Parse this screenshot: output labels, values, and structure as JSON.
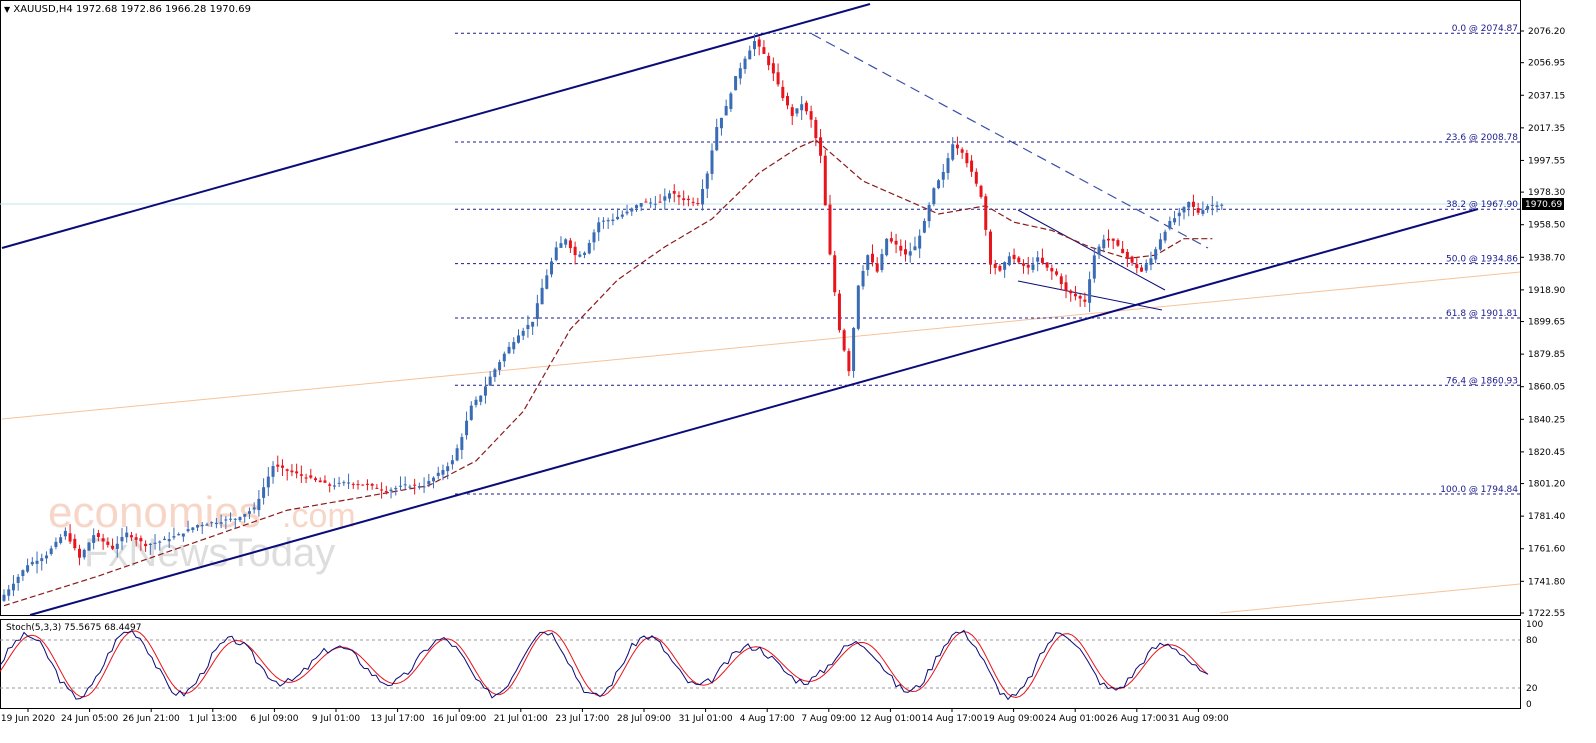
{
  "header": {
    "symbol": "XAUUSD,H4",
    "ohlc": "1972.68 1972.86 1966.28 1970.69"
  },
  "watermark": {
    "line1": "economies",
    "line1b": ".com",
    "line2": "FxNewsToday"
  },
  "colors": {
    "bull": "#3a6bb5",
    "bear": "#e8141c",
    "channel": "#0b0b7a",
    "fib": "#1a1a8c",
    "ma": "#8b1a1a",
    "stoch_main": "#0b0b7a",
    "stoch_signal": "#e8141c",
    "price_tag_bg": "#000000",
    "hline": "#bfe6ef"
  },
  "chart_data": {
    "type": "candlestick",
    "price_axis": {
      "min": 1722.55,
      "max": 2086.0,
      "ticks": [
        "2076.20",
        "2056.95",
        "2037.15",
        "2017.35",
        "1997.55",
        "1978.30",
        "1958.50",
        "1938.70",
        "1918.90",
        "1899.65",
        "1879.85",
        "1860.05",
        "1840.25",
        "1820.45",
        "1801.20",
        "1781.40",
        "1761.60",
        "1741.80",
        "1722.55"
      ]
    },
    "current_price": "1970.69",
    "time_axis": [
      "19 Jun 2020",
      "24 Jun 05:00",
      "26 Jun 21:00",
      "1 Jul 13:00",
      "6 Jul 09:00",
      "9 Jul 01:00",
      "13 Jul 17:00",
      "16 Jul 09:00",
      "21 Jul 01:00",
      "23 Jul 17:00",
      "28 Jul 09:00",
      "31 Jul 01:00",
      "4 Aug 17:00",
      "7 Aug 09:00",
      "12 Aug 01:00",
      "14 Aug 17:00",
      "19 Aug 09:00",
      "24 Aug 01:00",
      "26 Aug 17:00",
      "31 Aug 09:00"
    ],
    "fibonacci": [
      {
        "label": "0.0 @ 2074.87",
        "price": 2074.87
      },
      {
        "label": "23.6 @ 2008.78",
        "price": 2008.78
      },
      {
        "label": "38.2 @ 1967.90",
        "price": 1967.9
      },
      {
        "label": "50.0 @ 1934.86",
        "price": 1934.86
      },
      {
        "label": "61.8 @ 1901.81",
        "price": 1901.81
      },
      {
        "label": "76.4 @ 1860.93",
        "price": 1860.93
      },
      {
        "label": "100.0 @ 1794.84",
        "price": 1794.84
      }
    ],
    "path": [
      [
        0,
        1730
      ],
      [
        6,
        1752
      ],
      [
        10,
        1758
      ],
      [
        14,
        1772
      ],
      [
        17,
        1756
      ],
      [
        20,
        1770
      ],
      [
        24,
        1762
      ],
      [
        27,
        1771
      ],
      [
        31,
        1764
      ],
      [
        34,
        1766
      ],
      [
        38,
        1770
      ],
      [
        42,
        1776
      ],
      [
        46,
        1778
      ],
      [
        50,
        1780
      ],
      [
        54,
        1786
      ],
      [
        58,
        1812
      ],
      [
        62,
        1808
      ],
      [
        66,
        1804
      ],
      [
        70,
        1800
      ],
      [
        74,
        1802
      ],
      [
        78,
        1800
      ],
      [
        82,
        1797
      ],
      [
        86,
        1800
      ],
      [
        90,
        1800
      ],
      [
        93,
        1807
      ],
      [
        96,
        1815
      ],
      [
        98,
        1830
      ],
      [
        100,
        1848
      ],
      [
        102,
        1855
      ],
      [
        104,
        1866
      ],
      [
        107,
        1880
      ],
      [
        110,
        1892
      ],
      [
        113,
        1900
      ],
      [
        115,
        1920
      ],
      [
        118,
        1944
      ],
      [
        120,
        1950
      ],
      [
        122,
        1940
      ],
      [
        124,
        1942
      ],
      [
        127,
        1960
      ],
      [
        130,
        1962
      ],
      [
        133,
        1966
      ],
      [
        136,
        1972
      ],
      [
        140,
        1972
      ],
      [
        142,
        1978
      ],
      [
        145,
        1974
      ],
      [
        148,
        1972
      ],
      [
        150,
        1990
      ],
      [
        152,
        2018
      ],
      [
        154,
        2030
      ],
      [
        156,
        2048
      ],
      [
        158,
        2060
      ],
      [
        160,
        2070
      ],
      [
        162,
        2062
      ],
      [
        164,
        2050
      ],
      [
        166,
        2036
      ],
      [
        168,
        2025
      ],
      [
        170,
        2032
      ],
      [
        172,
        2022
      ],
      [
        174,
        2000
      ],
      [
        176,
        1940
      ],
      [
        178,
        1895
      ],
      [
        180,
        1870
      ],
      [
        182,
        1922
      ],
      [
        184,
        1940
      ],
      [
        186,
        1930
      ],
      [
        188,
        1950
      ],
      [
        190,
        1946
      ],
      [
        192,
        1940
      ],
      [
        194,
        1945
      ],
      [
        196,
        1960
      ],
      [
        198,
        1980
      ],
      [
        200,
        1990
      ],
      [
        202,
        2008
      ],
      [
        204,
        2003
      ],
      [
        206,
        1990
      ],
      [
        208,
        1976
      ],
      [
        210,
        1935
      ],
      [
        212,
        1930
      ],
      [
        214,
        1940
      ],
      [
        216,
        1935
      ],
      [
        218,
        1932
      ],
      [
        220,
        1938
      ],
      [
        222,
        1932
      ],
      [
        224,
        1928
      ],
      [
        226,
        1918
      ],
      [
        228,
        1915
      ],
      [
        230,
        1912
      ],
      [
        232,
        1940
      ],
      [
        234,
        1950
      ],
      [
        236,
        1948
      ],
      [
        238,
        1942
      ],
      [
        240,
        1935
      ],
      [
        242,
        1930
      ],
      [
        244,
        1938
      ],
      [
        246,
        1950
      ],
      [
        248,
        1960
      ],
      [
        250,
        1965
      ],
      [
        252,
        1972
      ],
      [
        254,
        1966
      ],
      [
        256,
        1970
      ],
      [
        258,
        1971
      ]
    ],
    "ma_path": [
      [
        0,
        1727
      ],
      [
        20,
        1745
      ],
      [
        40,
        1765
      ],
      [
        60,
        1785
      ],
      [
        80,
        1795
      ],
      [
        90,
        1800
      ],
      [
        100,
        1815
      ],
      [
        110,
        1845
      ],
      [
        120,
        1895
      ],
      [
        130,
        1925
      ],
      [
        140,
        1945
      ],
      [
        150,
        1962
      ],
      [
        160,
        1990
      ],
      [
        168,
        2005
      ],
      [
        172,
        2010
      ],
      [
        176,
        2000
      ],
      [
        182,
        1985
      ],
      [
        190,
        1975
      ],
      [
        198,
        1965
      ],
      [
        204,
        1968
      ],
      [
        208,
        1970
      ],
      [
        214,
        1960
      ],
      [
        222,
        1955
      ],
      [
        230,
        1945
      ],
      [
        238,
        1938
      ],
      [
        244,
        1940
      ],
      [
        250,
        1950
      ],
      [
        256,
        1950
      ]
    ],
    "stochastic": {
      "label": "Stoch(5,3,3) 75.5675 68.4497",
      "levels": [
        80,
        20
      ],
      "ticks": [
        "100",
        "80",
        "20",
        "0"
      ]
    }
  }
}
